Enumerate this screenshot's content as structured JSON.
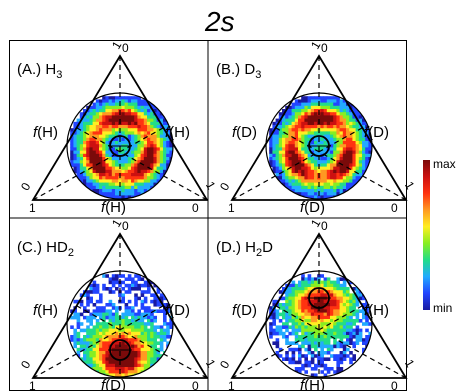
{
  "figure": {
    "title": "2s",
    "colorbar": {
      "max_label": "max",
      "min_label": "min"
    },
    "panels": [
      {
        "id": "A",
        "label": "(A.)",
        "molecule": {
          "base": "H",
          "sub": "3",
          "base2": "",
          "sub2": ""
        },
        "left_label": {
          "func": "f",
          "arg": "(H)"
        },
        "right_label": {
          "func": "f",
          "arg": "(H)"
        },
        "bottom_label": {
          "func": "f",
          "arg": "(H)"
        },
        "ticks": {
          "bottom_left": "1",
          "bottom_right": "0",
          "left_side": "0",
          "right_side": "1",
          "top": "0"
        },
        "pattern": "triple-ring"
      },
      {
        "id": "B",
        "label": "(B.)",
        "molecule": {
          "base": "D",
          "sub": "3",
          "base2": "",
          "sub2": ""
        },
        "left_label": {
          "func": "f",
          "arg": "(D)"
        },
        "right_label": {
          "func": "f",
          "arg": "(D)"
        },
        "bottom_label": {
          "func": "f",
          "arg": "(D)"
        },
        "ticks": {
          "bottom_left": "1",
          "bottom_right": "0",
          "left_side": "0",
          "right_side": "1",
          "top": "0"
        },
        "pattern": "triple-ring"
      },
      {
        "id": "C",
        "label": "(C.)",
        "molecule": {
          "base": "HD",
          "sub": "2",
          "base2": "",
          "sub2": ""
        },
        "left_label": {
          "func": "f",
          "arg": "(H)"
        },
        "right_label": {
          "func": "f",
          "arg": "(D)"
        },
        "bottom_label": {
          "func": "f",
          "arg": "(D)"
        },
        "ticks": {
          "bottom_left": "1",
          "bottom_right": "0",
          "left_side": "0",
          "right_side": "1",
          "top": "0"
        },
        "pattern": "bottom-lobe"
      },
      {
        "id": "D",
        "label": "(D.)",
        "molecule": {
          "base": "H",
          "sub": "2",
          "base2": "D",
          "sub2": ""
        },
        "left_label": {
          "func": "f",
          "arg": "(D)"
        },
        "right_label": {
          "func": "f",
          "arg": "(H)"
        },
        "bottom_label": {
          "func": "f",
          "arg": "(H)"
        },
        "ticks": {
          "bottom_left": "1",
          "bottom_right": "0",
          "left_side": "0",
          "right_side": "1",
          "top": "0"
        },
        "pattern": "top-lobe"
      }
    ]
  },
  "colors": {
    "colormap": [
      "#1a1aa0",
      "#2244ff",
      "#22aaff",
      "#22dd88",
      "#88ee22",
      "#ffee22",
      "#ff9922",
      "#ff3311",
      "#cc1111",
      "#7a0a0a"
    ]
  }
}
